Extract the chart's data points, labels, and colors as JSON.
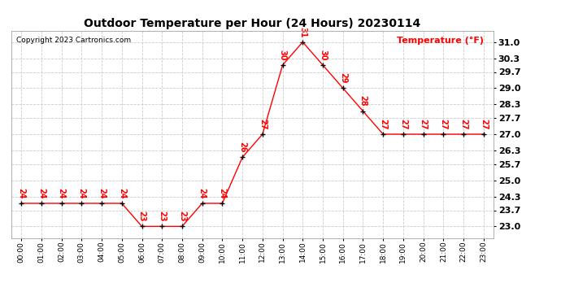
{
  "title": "Outdoor Temperature per Hour (24 Hours) 20230114",
  "copyright": "Copyright 2023 Cartronics.com",
  "ylabel": "Temperature (°F)",
  "hours": [
    0,
    1,
    2,
    3,
    4,
    5,
    6,
    7,
    8,
    9,
    10,
    11,
    12,
    13,
    14,
    15,
    16,
    17,
    18,
    19,
    20,
    21,
    22,
    23
  ],
  "temps": [
    24,
    24,
    24,
    24,
    24,
    24,
    23,
    23,
    23,
    24,
    24,
    26,
    27,
    30,
    31,
    30,
    29,
    28,
    27,
    27,
    27,
    27,
    27,
    27
  ],
  "xlabels": [
    "00:00",
    "01:00",
    "02:00",
    "03:00",
    "04:00",
    "05:00",
    "06:00",
    "07:00",
    "08:00",
    "09:00",
    "10:00",
    "11:00",
    "12:00",
    "13:00",
    "14:00",
    "15:00",
    "16:00",
    "17:00",
    "18:00",
    "19:00",
    "20:00",
    "21:00",
    "22:00",
    "23:00"
  ],
  "yticks": [
    23.0,
    23.7,
    24.3,
    25.0,
    25.7,
    26.3,
    27.0,
    27.7,
    28.3,
    29.0,
    29.7,
    30.3,
    31.0
  ],
  "line_color": "red",
  "marker_color": "black",
  "label_color": "red",
  "title_color": "black",
  "copyright_color": "black",
  "ylabel_color": "red",
  "bg_color": "white",
  "grid_color": "#cccccc",
  "ylim": [
    22.5,
    31.5
  ],
  "xlim": [
    -0.5,
    23.5
  ]
}
